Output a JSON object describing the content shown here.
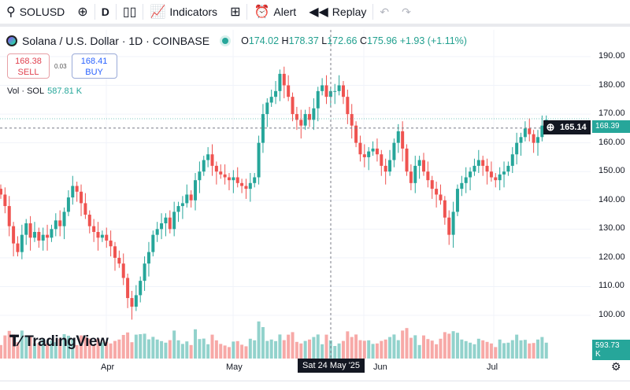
{
  "toolbar": {
    "symbol": "SOLUSD",
    "interval": "D",
    "indicators": "Indicators",
    "alert": "Alert",
    "replay": "Replay"
  },
  "legend": {
    "title": "Solana / U.S. Dollar · 1D · COINBASE",
    "o_label": "O",
    "o": "174.02",
    "h_label": "H",
    "h": "178.37",
    "l_label": "L",
    "l": "172.66",
    "c_label": "C",
    "c": "175.96",
    "change": "+1.93 (+1.11%)"
  },
  "trade": {
    "sell_price": "168.38",
    "sell_label": "SELL",
    "spread": "0.03",
    "buy_price": "168.41",
    "buy_label": "BUY"
  },
  "volume": {
    "label": "Vol · SOL",
    "value": "587.81 K",
    "last": "593.73 K"
  },
  "price_axis": [
    "190.00",
    "180.00",
    "170.00",
    "160.00",
    "150.00",
    "140.00",
    "130.00",
    "120.00",
    "110.00",
    "100.00"
  ],
  "last_price": "168.39",
  "crosshair_price": "165.14",
  "time_axis": [
    "Apr",
    "May",
    "Jun",
    "Jul"
  ],
  "crosshair_date": "Sat 24 May '25",
  "branding": "TradingView",
  "colors": {
    "up": "#26a69a",
    "down": "#ef5350"
  },
  "chart_data": {
    "type": "candlestick",
    "symbol": "SOLUSD",
    "interval": "1D",
    "start_date": "2025-03-07",
    "closes": [
      142,
      138,
      131,
      125,
      122,
      128,
      132,
      127,
      129,
      126,
      128,
      127,
      130,
      133,
      131,
      136,
      141,
      145,
      143,
      139,
      135,
      131,
      129,
      127,
      128,
      126,
      124,
      120,
      118,
      113,
      106,
      103,
      107,
      112,
      118,
      122,
      128,
      130,
      132,
      134,
      130,
      136,
      138,
      139,
      142,
      140,
      147,
      150,
      154,
      156,
      152,
      150,
      149,
      148,
      147,
      148,
      146,
      145,
      144,
      146,
      148,
      160,
      170,
      174,
      176,
      178,
      184,
      180,
      176,
      170,
      168,
      166,
      170,
      168,
      172,
      178,
      180,
      176,
      178,
      178,
      180,
      176,
      170,
      166,
      160,
      156,
      155,
      157,
      158,
      156,
      152,
      150,
      154,
      160,
      164,
      158,
      150,
      146,
      152,
      154,
      150,
      147,
      144,
      142,
      140,
      134,
      128,
      136,
      144,
      146,
      148,
      150,
      152,
      154,
      152,
      150,
      148,
      147,
      149,
      150,
      152,
      156,
      160,
      162,
      165,
      163,
      160,
      162,
      166,
      168
    ],
    "ylim": [
      95,
      195
    ]
  }
}
